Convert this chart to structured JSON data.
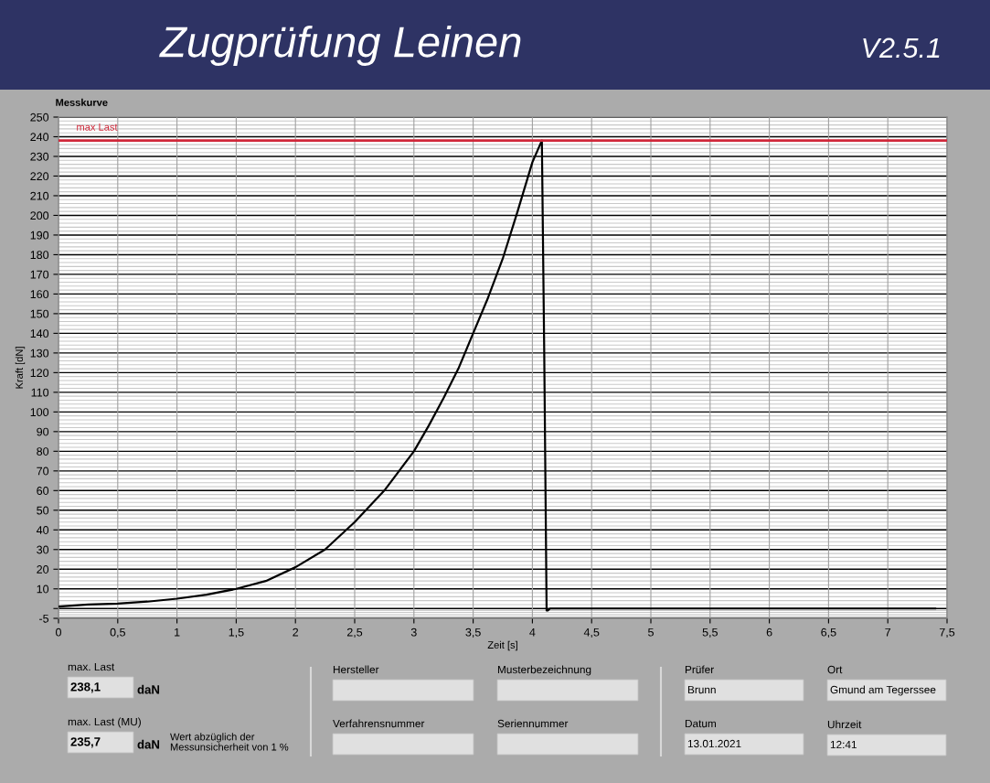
{
  "chart_data": {
    "type": "line",
    "title": "Zugprüfung Leinen",
    "subtitle": "Messkurve",
    "xlabel": "Zeit [s]",
    "ylabel": "Kraft [dN]",
    "series": [
      {
        "color": "#000000",
        "x": [
          0,
          0.25,
          0.5,
          0.75,
          1,
          1.25,
          1.5,
          1.75,
          2,
          2.25,
          2.5,
          2.625,
          2.75,
          2.875,
          3,
          3.125,
          3.25,
          3.375,
          3.5,
          3.625,
          3.75,
          3.875,
          4,
          4.08,
          4.1,
          4.12,
          4.13,
          4.15,
          4.3,
          4.5,
          5,
          5.5,
          6,
          6.5,
          7,
          7.4
        ],
        "values": [
          1,
          2,
          2.5,
          3.5,
          5,
          7,
          10,
          14,
          21,
          30,
          44,
          52,
          60,
          70,
          80,
          93,
          107,
          122,
          140,
          158,
          178,
          202,
          227,
          238.1,
          130,
          -1,
          -1,
          0,
          0,
          0,
          0,
          0,
          0,
          0,
          0,
          0
        ]
      }
    ],
    "xlim": [
      0,
      7.5
    ],
    "xticks": [
      0,
      {
        "value": 0.5,
        "label": "0,5"
      },
      1,
      {
        "value": 1.5,
        "label": "1,5"
      },
      2,
      {
        "value": 2.5,
        "label": "2,5"
      },
      3,
      {
        "value": 3.5,
        "label": "3,5"
      },
      4,
      {
        "value": 4.5,
        "label": "4,5"
      },
      5,
      {
        "value": 5.5,
        "label": "5,5"
      },
      6,
      {
        "value": 6.5,
        "label": "6,5"
      },
      7,
      {
        "value": 7.5,
        "label": "7,5"
      }
    ],
    "ylim": [
      -5,
      250
    ],
    "yticks": [
      -5,
      {
        "value": 0,
        "label": null
      },
      10,
      20,
      30,
      40,
      50,
      60,
      70,
      80,
      90,
      100,
      110,
      120,
      130,
      140,
      150,
      160,
      170,
      180,
      190,
      200,
      210,
      220,
      230,
      240,
      250
    ],
    "grid": true,
    "legend": false,
    "ref_lines": [
      {
        "axis": "y",
        "value": 238.1,
        "label": "max Last",
        "color": "#d0283a",
        "line_style": "solid"
      }
    ],
    "annotations": [
      "V2.5.1",
      "max. Last",
      "238,1",
      "daN",
      "max. Last (MU)",
      "235,7",
      "daN",
      "Wert abzüglich der\nMessunsicherheit von 1 %",
      "Hersteller",
      "Musterbezeichnung",
      "Verfahrensnummer",
      "Seriennummer",
      "Prüfer",
      "Brunn",
      "Ort",
      "Gmund am Tegerssee",
      "Datum",
      "13.01.2021",
      "Uhrzeit",
      "12:41"
    ]
  }
}
